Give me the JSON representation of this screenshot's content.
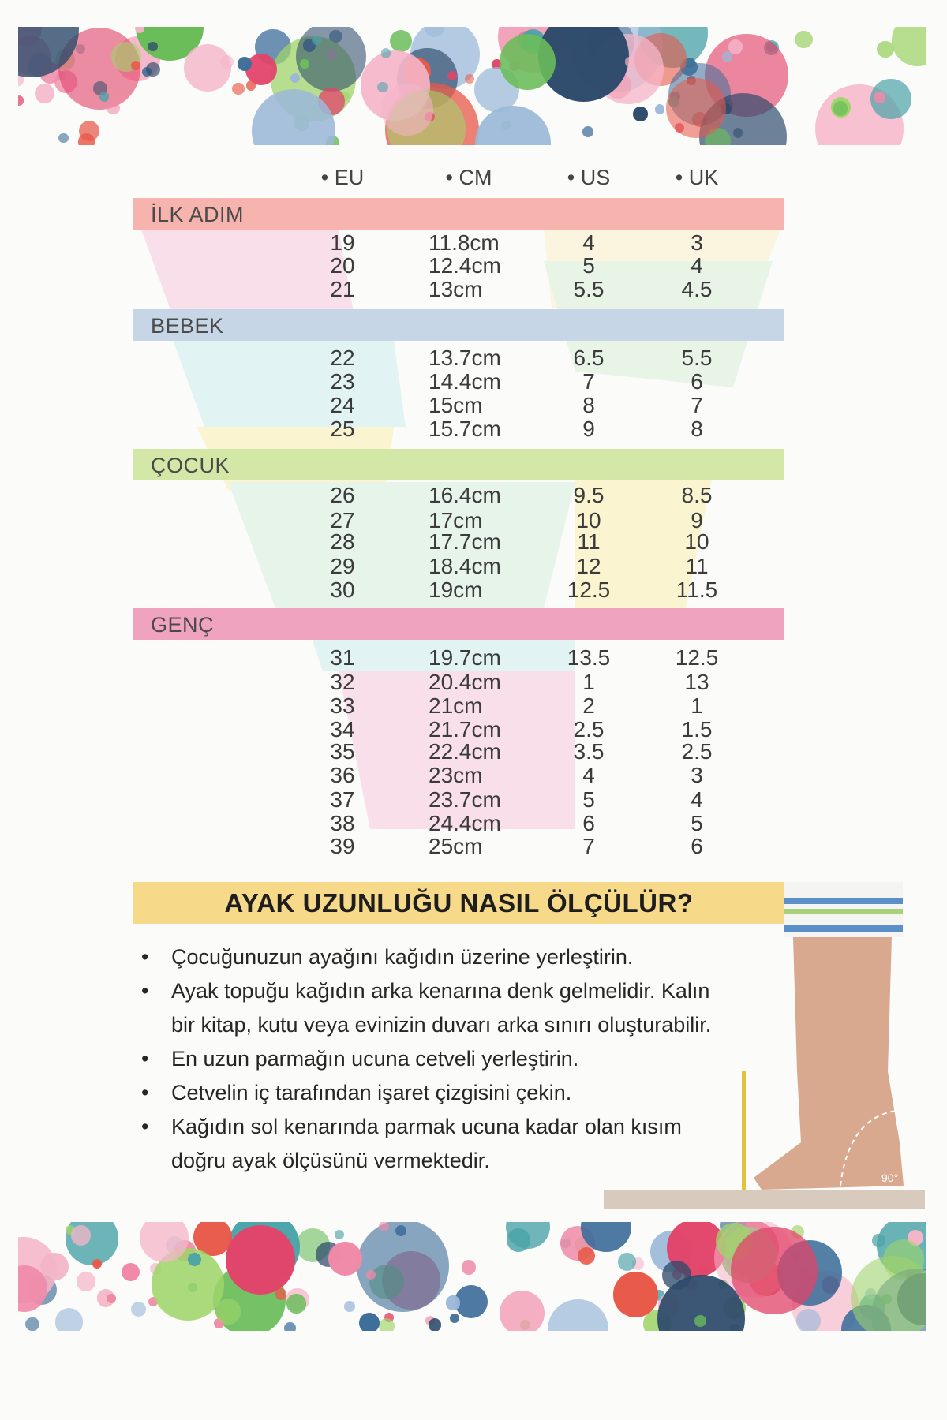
{
  "columns": [
    "• EU",
    "• CM",
    "• US",
    "• UK"
  ],
  "colors": {
    "ilk_adim": "#f7b3ad",
    "bebek": "#c6d6e6",
    "cocuk": "#d3e7a6",
    "genc": "#f0a3bf",
    "heading_bg": "#f7d98a"
  },
  "groups": [
    {
      "label": "İLK ADIM",
      "rows": [
        [
          "19",
          "11.8cm",
          "4",
          "3"
        ],
        [
          "20",
          "12.4cm",
          "5",
          "4"
        ],
        [
          "21",
          "13cm",
          "5.5",
          "4.5"
        ]
      ]
    },
    {
      "label": "BEBEK",
      "rows": [
        [
          "22",
          "13.7cm",
          "6.5",
          "5.5"
        ],
        [
          "23",
          "14.4cm",
          "7",
          "6"
        ],
        [
          "24",
          "15cm",
          "8",
          "7"
        ],
        [
          "25",
          "15.7cm",
          "9",
          "8"
        ]
      ]
    },
    {
      "label": "ÇOCUK",
      "rows": [
        [
          "26",
          "16.4cm",
          "9.5",
          "8.5"
        ],
        [
          "27",
          "17cm",
          "10",
          "9"
        ],
        [
          "28",
          "17.7cm",
          "11",
          "10"
        ],
        [
          "29",
          "18.4cm",
          "12",
          "11"
        ],
        [
          "30",
          "19cm",
          "12.5",
          "11.5"
        ]
      ]
    },
    {
      "label": "GENÇ",
      "rows": [
        [
          "31",
          "19.7cm",
          "13.5",
          "12.5"
        ],
        [
          "32",
          "20.4cm",
          "1",
          "13"
        ],
        [
          "33",
          "21cm",
          "2",
          "1"
        ],
        [
          "34",
          "21.7cm",
          "2.5",
          "1.5"
        ],
        [
          "35",
          "22.4cm",
          "3.5",
          "2.5"
        ],
        [
          "36",
          "23cm",
          "4",
          "3"
        ],
        [
          "37",
          "23.7cm",
          "5",
          "4"
        ],
        [
          "38",
          "24.4cm",
          "6",
          "5"
        ],
        [
          "39",
          "25cm",
          "7",
          "6"
        ]
      ]
    }
  ],
  "howto": {
    "title": "AYAK UZUNLUĞU NASIL ÖLÇÜLÜR?",
    "bullets": [
      "Çocuğunuzun ayağını kağıdın üzerine yerleştirin.",
      "Ayak topuğu kağıdın arka kenarına denk gelmelidir. Kalın bir kitap, kutu veya evinizin duvarı arka sınırı oluşturabilir.",
      "En uzun parmağın ucuna cetveli yerleştirin.",
      "Cetvelin iç tarafından işaret çizgisini çekin.",
      "Kağıdın sol kenarında parmak ucuna kadar olan kısım doğru ayak ölçüsünü vermektedir."
    ],
    "angle_label": "90°"
  }
}
